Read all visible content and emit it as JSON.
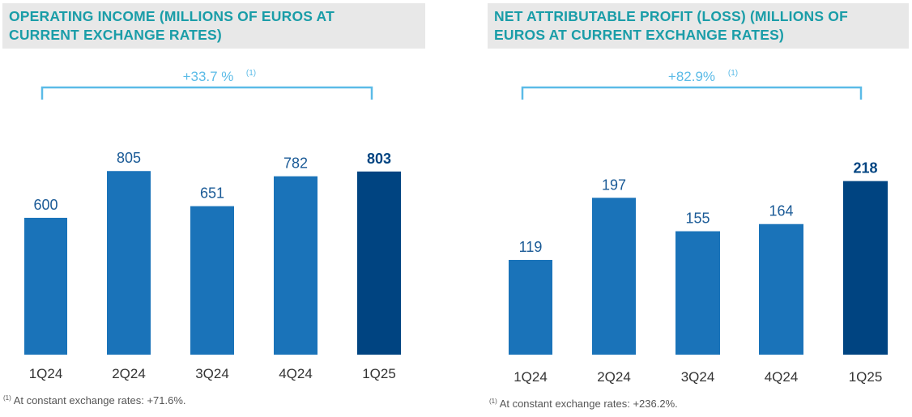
{
  "colors": {
    "bar": "#1a73b9",
    "bar_highlight": "#004481",
    "bracket": "#5bbbe7",
    "title": "#1a9da8",
    "value_label": "#1a5a96",
    "title_bg": "#e8e8e8"
  },
  "chart_data": [
    {
      "type": "bar",
      "title": "OPERATING INCOME (MILLIONS OF EUROS AT CURRENT EXCHANGE RATES)",
      "title_lines": [
        "OPERATING INCOME (MILLIONS OF EUROS AT",
        "CURRENT EXCHANGE RATES)"
      ],
      "categories": [
        "1Q24",
        "2Q24",
        "3Q24",
        "4Q24",
        "1Q25"
      ],
      "values": [
        600,
        805,
        651,
        782,
        803
      ],
      "value_labels": [
        "600",
        "805",
        "651",
        "782",
        "803"
      ],
      "highlight_index": 4,
      "ylim": [
        0,
        1065
      ],
      "bracket_label": "+33.7 %",
      "bracket_note": "(1)",
      "footnote_mark": "(1)",
      "footnote": "At constant exchange rates: +71.6%."
    },
    {
      "type": "bar",
      "title": "NET ATTRIBUTABLE PROFIT (LOSS) (MILLIONS OF EUROS AT CURRENT EXCHANGE RATES)",
      "title_lines": [
        "NET ATTRIBUTABLE PROFIT (LOSS) (MILLIONS OF",
        "EUROS AT CURRENT EXCHANGE RATES)"
      ],
      "categories": [
        "1Q24",
        "2Q24",
        "3Q24",
        "4Q24",
        "1Q25"
      ],
      "values": [
        119,
        197,
        155,
        164,
        218
      ],
      "value_labels": [
        "119",
        "197",
        "155",
        "164",
        "218"
      ],
      "highlight_index": 4,
      "ylim": [
        0,
        300
      ],
      "bracket_label": "+82.9%",
      "bracket_note": "(1)",
      "footnote_mark": "(1)",
      "footnote": "At constant exchange rates: +236.2%."
    }
  ]
}
